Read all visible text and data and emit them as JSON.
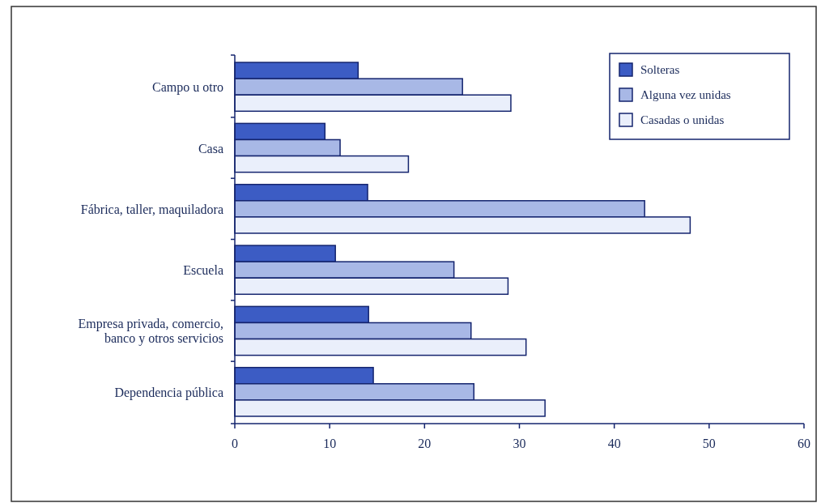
{
  "chart_data": {
    "type": "bar",
    "orientation": "horizontal",
    "categories": [
      "Campo u otro",
      "Casa",
      "Fábrica, taller, maquiladora",
      "Escuela",
      "Empresa privada, comercio, banco y otros servicios",
      "Dependencia pública"
    ],
    "series": [
      {
        "name": "Solteras",
        "color": "#3c5cc4",
        "values": [
          13.0,
          9.5,
          14.0,
          10.6,
          14.1,
          14.6
        ]
      },
      {
        "name": "Alguna vez unidas",
        "color": "#a8b8e6",
        "values": [
          24.0,
          11.1,
          43.2,
          23.1,
          24.9,
          25.2
        ]
      },
      {
        "name": "Casadas o unidas",
        "color": "#eaeffb",
        "values": [
          29.1,
          18.3,
          48.0,
          28.8,
          30.7,
          32.7
        ]
      }
    ],
    "xlim": [
      0,
      60
    ],
    "xticks": [
      0,
      10,
      20,
      30,
      40,
      50,
      60
    ],
    "grid": false,
    "legend": "top right"
  }
}
